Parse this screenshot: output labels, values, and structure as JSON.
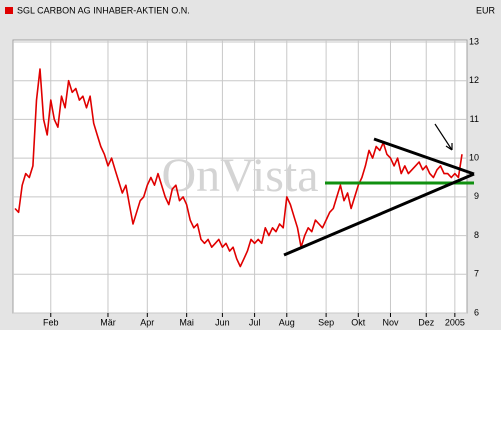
{
  "chart_data": {
    "type": "line",
    "currency": "EUR",
    "watermark": "OnVista",
    "series": [
      {
        "name": "SGL CARBON AG INHABER-AKTIEN O.N.",
        "color": "#e00000",
        "values": [
          8.7,
          8.6,
          9.3,
          9.6,
          9.5,
          9.8,
          11.5,
          12.3,
          11.0,
          10.6,
          11.5,
          11.0,
          10.8,
          11.6,
          11.3,
          12.0,
          11.7,
          11.8,
          11.5,
          11.6,
          11.3,
          11.6,
          10.9,
          10.6,
          10.3,
          10.1,
          9.8,
          10.0,
          9.7,
          9.4,
          9.1,
          9.3,
          8.8,
          8.3,
          8.6,
          8.9,
          9.0,
          9.3,
          9.5,
          9.3,
          9.6,
          9.3,
          9.0,
          8.8,
          9.2,
          9.3,
          8.9,
          9.0,
          8.8,
          8.4,
          8.2,
          8.3,
          7.9,
          7.8,
          7.9,
          7.7,
          7.8,
          7.9,
          7.7,
          7.8,
          7.6,
          7.7,
          7.4,
          7.2,
          7.4,
          7.6,
          7.9,
          7.8,
          7.9,
          7.8,
          8.2,
          8.0,
          8.2,
          8.1,
          8.3,
          8.2,
          9.0,
          8.8,
          8.5,
          8.2,
          7.7,
          8.0,
          8.2,
          8.1,
          8.4,
          8.3,
          8.2,
          8.4,
          8.6,
          8.7,
          9.0,
          9.3,
          8.9,
          9.1,
          8.7,
          9.0,
          9.3,
          9.5,
          9.8,
          10.2,
          10.0,
          10.3,
          10.2,
          10.4,
          10.1,
          10.0,
          9.8,
          10.0,
          9.6,
          9.8,
          9.6,
          9.7,
          9.8,
          9.9,
          9.7,
          9.8,
          9.6,
          9.5,
          9.7,
          9.8,
          9.6,
          9.6,
          9.5,
          9.6,
          9.5,
          10.1
        ]
      }
    ],
    "xlim": [
      0,
      125
    ],
    "xticks": [
      {
        "value": 10,
        "label": "Feb"
      },
      {
        "value": 26,
        "label": "Mär"
      },
      {
        "value": 37,
        "label": "Apr"
      },
      {
        "value": 48,
        "label": "Mai"
      },
      {
        "value": 58,
        "label": "Jun"
      },
      {
        "value": 67,
        "label": "Jul"
      },
      {
        "value": 76,
        "label": "Aug"
      },
      {
        "value": 87,
        "label": "Sep"
      },
      {
        "value": 96,
        "label": "Okt"
      },
      {
        "value": 105,
        "label": "Nov"
      },
      {
        "value": 115,
        "label": "Dez"
      },
      {
        "value": 123,
        "label": "2005"
      }
    ],
    "ylim": [
      6,
      13
    ],
    "yticks": [
      6,
      7,
      8,
      9,
      10,
      11,
      12,
      13
    ],
    "grid": true
  }
}
